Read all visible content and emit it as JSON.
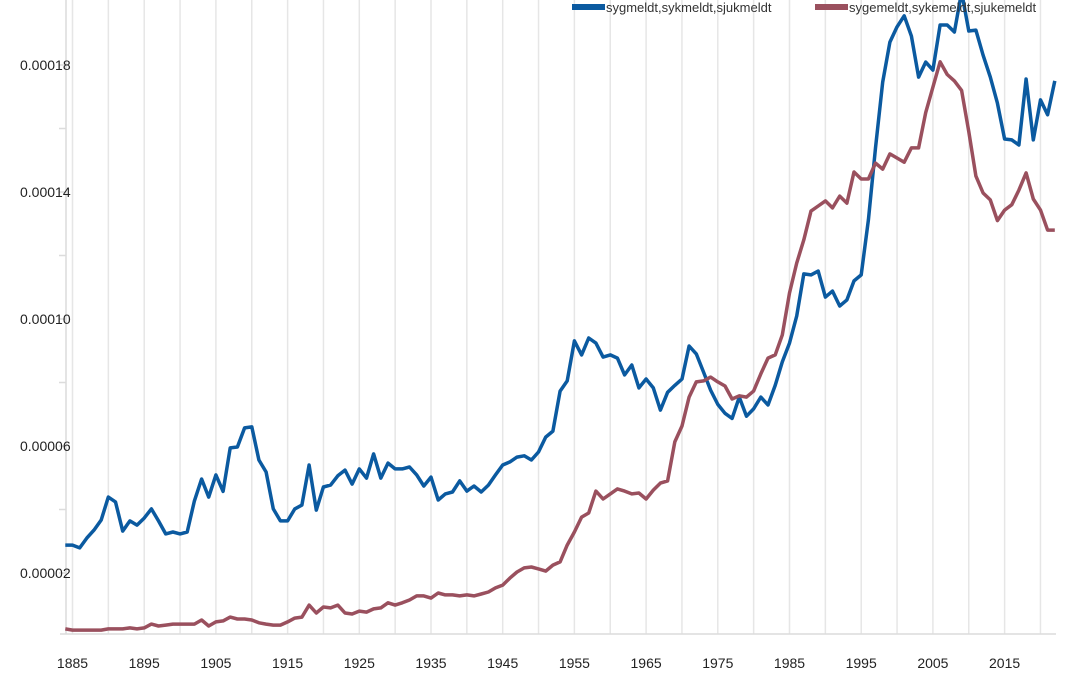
{
  "chart_data": {
    "type": "line",
    "title": "",
    "xlabel": "",
    "ylabel": "",
    "xlim": [
      1884,
      2022
    ],
    "ylim": [
      0,
      0.0002
    ],
    "grid": "vertical lines every 5 years",
    "legend_placement": "top",
    "x_start": 1884,
    "x_step": 1,
    "x_ticks": [
      "1885",
      "1895",
      "1905",
      "1915",
      "1925",
      "1935",
      "1945",
      "1955",
      "1965",
      "1975",
      "1985",
      "1995",
      "2005",
      "2015"
    ],
    "y_ticks": [
      "0.00002",
      "0.00006",
      "0.00010",
      "0.00014",
      "0.00018"
    ],
    "value_scale": 1e-05,
    "series": [
      {
        "name": "sygmeldt,sykmeldt,sjukmeldt",
        "color": "#0b5aa0",
        "values": [
          2.88,
          2.88,
          2.79,
          3.1,
          3.35,
          3.67,
          4.39,
          4.24,
          3.32,
          3.64,
          3.51,
          3.73,
          4.02,
          3.64,
          3.23,
          3.29,
          3.23,
          3.29,
          4.27,
          4.96,
          4.39,
          5.09,
          4.57,
          5.94,
          5.97,
          6.57,
          6.6,
          5.56,
          5.18,
          4.02,
          3.64,
          3.64,
          4.02,
          4.14,
          5.4,
          3.98,
          4.71,
          4.77,
          5.06,
          5.24,
          4.8,
          5.28,
          4.99,
          5.75,
          4.99,
          5.46,
          5.28,
          5.28,
          5.34,
          5.09,
          4.74,
          5.02,
          4.3,
          4.49,
          4.55,
          4.9,
          4.58,
          4.74,
          4.55,
          4.77,
          5.09,
          5.4,
          5.5,
          5.65,
          5.69,
          5.56,
          5.81,
          6.28,
          6.47,
          7.73,
          8.05,
          9.31,
          8.87,
          9.4,
          9.24,
          8.8,
          8.87,
          8.77,
          8.24,
          8.55,
          7.83,
          8.11,
          7.83,
          7.13,
          7.69,
          7.91,
          8.11,
          9.15,
          8.9,
          8.33,
          7.76,
          7.31,
          7.03,
          6.87,
          7.54,
          6.94,
          7.17,
          7.54,
          7.29,
          7.91,
          8.65,
          9.24,
          10.09,
          11.42,
          11.39,
          11.51,
          10.69,
          10.88,
          10.41,
          10.6,
          11.2,
          11.39,
          13.12,
          15.39,
          17.46,
          18.72,
          19.2,
          19.55,
          18.91,
          17.62,
          18.09,
          17.84,
          19.26,
          19.26,
          19.04,
          20.3,
          19.07,
          19.1,
          18.31,
          17.62,
          16.8,
          15.67,
          15.64,
          15.48,
          17.56,
          15.64,
          16.9,
          16.43,
          17.5
        ]
      },
      {
        "name": "sygemeldt,sykemeldt,sjukemeldt",
        "color": "#9a505e",
        "values": [
          0.24,
          0.2,
          0.2,
          0.2,
          0.2,
          0.2,
          0.24,
          0.24,
          0.24,
          0.27,
          0.24,
          0.27,
          0.39,
          0.33,
          0.36,
          0.39,
          0.39,
          0.39,
          0.39,
          0.52,
          0.33,
          0.46,
          0.49,
          0.61,
          0.55,
          0.55,
          0.52,
          0.43,
          0.39,
          0.36,
          0.36,
          0.46,
          0.58,
          0.61,
          0.99,
          0.74,
          0.93,
          0.9,
          0.99,
          0.74,
          0.71,
          0.8,
          0.77,
          0.87,
          0.9,
          1.06,
          0.99,
          1.06,
          1.15,
          1.28,
          1.28,
          1.21,
          1.37,
          1.31,
          1.31,
          1.28,
          1.31,
          1.28,
          1.34,
          1.4,
          1.53,
          1.62,
          1.84,
          2.03,
          2.16,
          2.19,
          2.13,
          2.06,
          2.25,
          2.35,
          2.88,
          3.29,
          3.76,
          3.89,
          4.58,
          4.33,
          4.49,
          4.65,
          4.58,
          4.49,
          4.52,
          4.33,
          4.61,
          4.83,
          4.9,
          6.13,
          6.63,
          7.54,
          8.02,
          8.05,
          8.17,
          8.02,
          7.89,
          7.48,
          7.58,
          7.54,
          7.73,
          8.27,
          8.77,
          8.87,
          9.5,
          10.82,
          11.76,
          12.49,
          13.4,
          13.56,
          13.72,
          13.5,
          13.87,
          13.65,
          14.63,
          14.41,
          14.41,
          14.91,
          14.72,
          15.2,
          15.07,
          14.94,
          15.39,
          15.39,
          16.5,
          17.3,
          18.1,
          17.7,
          17.5,
          17.2,
          15.9,
          14.5,
          13.97,
          13.75,
          13.1,
          13.43,
          13.6,
          14.06,
          14.6,
          13.78,
          13.43,
          12.8,
          12.8
        ]
      }
    ]
  }
}
